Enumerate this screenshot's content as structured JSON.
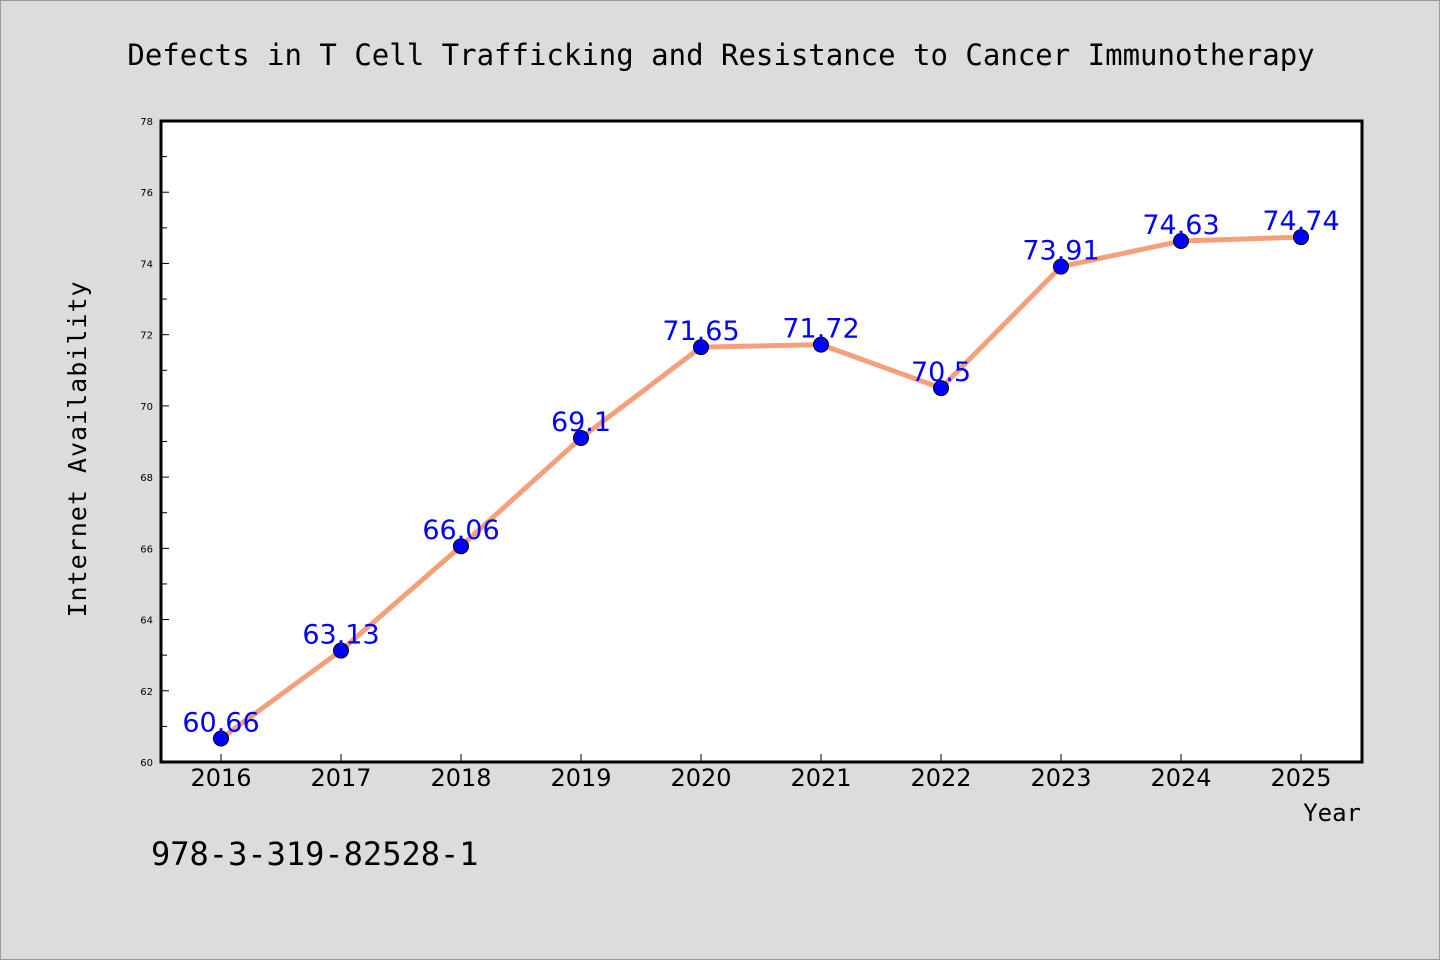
{
  "chart_data": {
    "type": "line",
    "title": "Defects in T Cell Trafficking and Resistance to Cancer Immunotherapy",
    "xlabel": "Year",
    "ylabel": "Internet Availability",
    "categories": [
      "2016",
      "2017",
      "2018",
      "2019",
      "2020",
      "2021",
      "2022",
      "2023",
      "2024",
      "2025"
    ],
    "series": [
      {
        "values": [
          60.66,
          63.13,
          66.06,
          69.1,
          71.65,
          71.72,
          70.5,
          73.91,
          74.63,
          74.74
        ],
        "labels": [
          "60.66",
          "63.13",
          "66.06",
          "69.1",
          "71.65",
          "71.72",
          "70.5",
          "73.91",
          "74.63",
          "74.74"
        ]
      }
    ],
    "ylim": [
      60,
      78
    ],
    "yticks": [
      "60",
      "62",
      "64",
      "66",
      "68",
      "70",
      "72",
      "74",
      "76",
      "78"
    ],
    "grid": false,
    "colors": {
      "line": "#f4a07a",
      "marker": "#0000ff",
      "label": "#0000ff",
      "axes": "#000000",
      "background": "#dcdcdc",
      "plot_background": "#ffffff"
    }
  },
  "footer": {
    "isbn": "978-3-319-82528-1"
  }
}
